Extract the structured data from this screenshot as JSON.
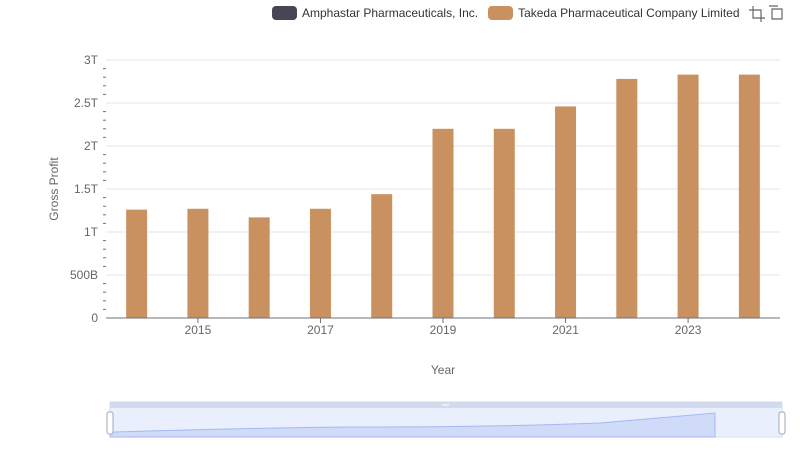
{
  "legend": {
    "items": [
      {
        "label": "Amphastar Pharmaceuticals, Inc.",
        "color": "#464655"
      },
      {
        "label": "Takeda Pharmaceutical Company Limited",
        "color": "#c99160"
      }
    ]
  },
  "toolbox": {
    "icons": [
      "zoom-icon",
      "restore-icon"
    ]
  },
  "chart_data": {
    "type": "bar",
    "title": "",
    "xlabel": "Year",
    "ylabel": "Gross Profit",
    "categories": [
      "2014",
      "2015",
      "2016",
      "2017",
      "2018",
      "2019",
      "2020",
      "2021",
      "2022",
      "2023",
      "2024"
    ],
    "x_tick_labels": [
      "2015",
      "2017",
      "2019",
      "2021",
      "2023"
    ],
    "y_tick_labels": [
      "0",
      "500B",
      "1T",
      "1.5T",
      "2T",
      "2.5T",
      "3T"
    ],
    "ylim": [
      0,
      3000000000000
    ],
    "series": [
      {
        "name": "Amphastar Pharmaceuticals, Inc.",
        "color": "#464655",
        "values": [
          0,
          0,
          0,
          0,
          0,
          0,
          0,
          0,
          0,
          0,
          0
        ]
      },
      {
        "name": "Takeda Pharmaceutical Company Limited",
        "color": "#c99160",
        "values": [
          1260000000000,
          1270000000000,
          1170000000000,
          1270000000000,
          1440000000000,
          2200000000000,
          2200000000000,
          2460000000000,
          2780000000000,
          2830000000000,
          2830000000000
        ]
      }
    ],
    "grid": true,
    "legend_position": "top-right"
  }
}
